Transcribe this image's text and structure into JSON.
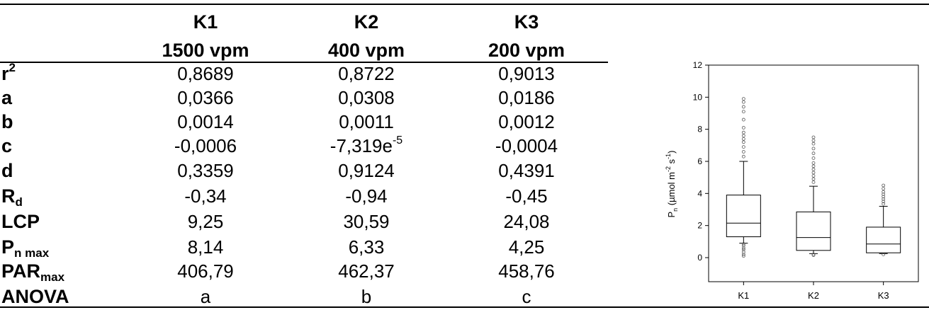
{
  "table": {
    "columns": [
      {
        "name": "K1",
        "conc": "1500 vpm"
      },
      {
        "name": "K2",
        "conc": "400 vpm"
      },
      {
        "name": "K3",
        "conc": "200 vpm"
      }
    ],
    "rows": [
      {
        "label": "r",
        "sup": "2",
        "sub": "",
        "values": [
          "0,8689",
          "0,8722",
          "0,9013"
        ]
      },
      {
        "label": "a",
        "sup": "",
        "sub": "",
        "values": [
          "0,0366",
          "0,0308",
          "0,0186"
        ]
      },
      {
        "label": "b",
        "sup": "",
        "sub": "",
        "values": [
          "0,0014",
          "0,0011",
          "0,0012"
        ]
      },
      {
        "label": "c",
        "sup": "",
        "sub": "",
        "values": [
          "-0,0006",
          "-7,319e",
          "-0,0004"
        ]
      },
      {
        "label": "d",
        "sup": "",
        "sub": "",
        "values": [
          "0,3359",
          "0,9124",
          "0,4391"
        ]
      },
      {
        "label": "R",
        "sup": "",
        "sub": "d",
        "values": [
          "-0,34",
          "-0,94",
          "-0,45"
        ]
      },
      {
        "label": "LCP",
        "sup": "",
        "sub": "",
        "values": [
          "9,25",
          "30,59",
          "24,08"
        ]
      },
      {
        "label": "P",
        "sup": "",
        "sub": "n max",
        "values": [
          "8,14",
          "6,33",
          "4,25"
        ]
      },
      {
        "label": "PAR",
        "sup": "",
        "sub": "max",
        "values": [
          "406,79",
          "462,37",
          "458,76"
        ]
      },
      {
        "label": "ANOVA",
        "sup": "",
        "sub": "",
        "values": [
          "a",
          "b",
          "c"
        ]
      }
    ],
    "c_k2_exponent": "-5"
  },
  "chart_data": {
    "type": "boxplot",
    "categories": [
      "K1",
      "K2",
      "K3"
    ],
    "ylabel": "P",
    "ylabel_sub": "n",
    "ylabel_unit": " (µmol m",
    "ylabel_exp1": "-2",
    "ylabel_mid": " s",
    "ylabel_exp2": "-1",
    "ylabel_end": ")",
    "ylim": [
      -1.5,
      12
    ],
    "yticks": [
      "0",
      "2",
      "4",
      "6",
      "8",
      "10",
      "12"
    ],
    "boxes": [
      {
        "q1": 1.3,
        "median": 2.15,
        "q3": 3.9,
        "wlo": 0.9,
        "whi": 6.0,
        "outliers": [
          0.1,
          0.2,
          0.35,
          0.5,
          0.6,
          0.75,
          0.85,
          6.3,
          6.6,
          6.9,
          7.2,
          7.4,
          7.6,
          7.8,
          8.1,
          8.6,
          9.1,
          9.4,
          9.7,
          9.9
        ]
      },
      {
        "q1": 0.45,
        "median": 1.25,
        "q3": 2.85,
        "wlo": 0.25,
        "whi": 4.45,
        "outliers": [
          0.15,
          0.2,
          4.7,
          4.9,
          5.1,
          5.3,
          5.5,
          5.7,
          5.9,
          6.2,
          6.5,
          6.8,
          7.1,
          7.3,
          7.5
        ]
      },
      {
        "q1": 0.3,
        "median": 0.85,
        "q3": 1.9,
        "wlo": 0.25,
        "whi": 3.2,
        "outliers": [
          0.2,
          3.35,
          3.5,
          3.65,
          3.8,
          3.95,
          4.1,
          4.3,
          4.5
        ]
      }
    ],
    "colors": {
      "ink": "#000000",
      "outlier": "#555555"
    }
  }
}
